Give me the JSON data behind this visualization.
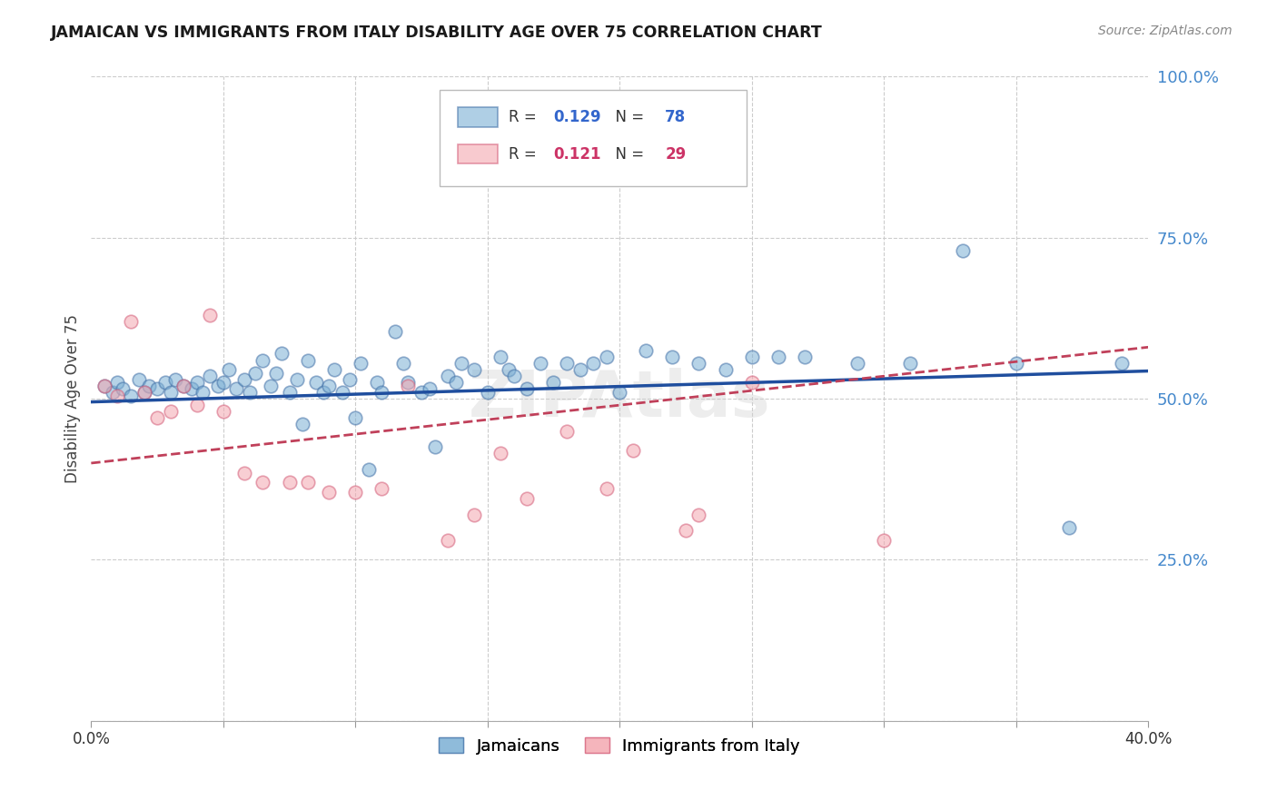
{
  "title": "JAMAICAN VS IMMIGRANTS FROM ITALY DISABILITY AGE OVER 75 CORRELATION CHART",
  "source": "Source: ZipAtlas.com",
  "ylabel_label": "Disability Age Over 75",
  "x_min": 0.0,
  "x_max": 0.4,
  "y_min": 0.0,
  "y_max": 1.0,
  "y_ticks": [
    0.0,
    0.25,
    0.5,
    0.75,
    1.0
  ],
  "grid_color": "#cccccc",
  "background_color": "#ffffff",
  "blue_color": "#7bafd4",
  "pink_color": "#f4a7b0",
  "blue_edge_color": "#4472a8",
  "pink_edge_color": "#d45f7a",
  "blue_line_color": "#1f4e9e",
  "pink_line_color": "#c0405a",
  "legend_R_blue": "0.129",
  "legend_N_blue": "78",
  "legend_R_pink": "0.121",
  "legend_N_pink": "29",
  "watermark": "ZIPAtlas",
  "jamaicans_x": [
    0.005,
    0.008,
    0.01,
    0.012,
    0.015,
    0.018,
    0.02,
    0.022,
    0.025,
    0.028,
    0.03,
    0.032,
    0.035,
    0.038,
    0.04,
    0.042,
    0.045,
    0.048,
    0.05,
    0.052,
    0.055,
    0.058,
    0.06,
    0.062,
    0.065,
    0.068,
    0.07,
    0.072,
    0.075,
    0.078,
    0.08,
    0.082,
    0.085,
    0.088,
    0.09,
    0.092,
    0.095,
    0.098,
    0.1,
    0.102,
    0.105,
    0.108,
    0.11,
    0.115,
    0.118,
    0.12,
    0.125,
    0.128,
    0.13,
    0.135,
    0.138,
    0.14,
    0.145,
    0.15,
    0.155,
    0.158,
    0.16,
    0.165,
    0.17,
    0.175,
    0.18,
    0.185,
    0.19,
    0.195,
    0.2,
    0.21,
    0.22,
    0.23,
    0.24,
    0.25,
    0.26,
    0.27,
    0.29,
    0.31,
    0.33,
    0.35,
    0.37,
    0.39
  ],
  "jamaicans_y": [
    0.52,
    0.51,
    0.525,
    0.515,
    0.505,
    0.53,
    0.51,
    0.52,
    0.515,
    0.525,
    0.51,
    0.53,
    0.52,
    0.515,
    0.525,
    0.51,
    0.535,
    0.52,
    0.525,
    0.545,
    0.515,
    0.53,
    0.51,
    0.54,
    0.56,
    0.52,
    0.54,
    0.57,
    0.51,
    0.53,
    0.46,
    0.56,
    0.525,
    0.51,
    0.52,
    0.545,
    0.51,
    0.53,
    0.47,
    0.555,
    0.39,
    0.525,
    0.51,
    0.605,
    0.555,
    0.525,
    0.51,
    0.515,
    0.425,
    0.535,
    0.525,
    0.555,
    0.545,
    0.51,
    0.565,
    0.545,
    0.535,
    0.515,
    0.555,
    0.525,
    0.555,
    0.545,
    0.555,
    0.565,
    0.51,
    0.575,
    0.565,
    0.555,
    0.545,
    0.565,
    0.565,
    0.565,
    0.555,
    0.555,
    0.73,
    0.555,
    0.3,
    0.555
  ],
  "italy_x": [
    0.005,
    0.01,
    0.015,
    0.02,
    0.025,
    0.03,
    0.035,
    0.04,
    0.045,
    0.05,
    0.058,
    0.065,
    0.075,
    0.082,
    0.09,
    0.1,
    0.11,
    0.12,
    0.135,
    0.145,
    0.155,
    0.165,
    0.18,
    0.195,
    0.205,
    0.225,
    0.23,
    0.25,
    0.3
  ],
  "italy_y": [
    0.52,
    0.505,
    0.62,
    0.51,
    0.47,
    0.48,
    0.52,
    0.49,
    0.63,
    0.48,
    0.385,
    0.37,
    0.37,
    0.37,
    0.355,
    0.355,
    0.36,
    0.52,
    0.28,
    0.32,
    0.415,
    0.345,
    0.45,
    0.36,
    0.42,
    0.295,
    0.32,
    0.525,
    0.28
  ]
}
